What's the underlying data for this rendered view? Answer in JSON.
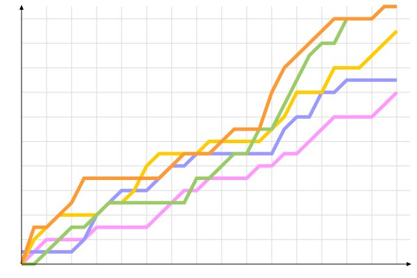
{
  "chart_data": {
    "type": "line",
    "title": "",
    "xlabel": "",
    "ylabel": "",
    "xlim": [
      0,
      30
    ],
    "ylim": [
      0,
      10.5
    ],
    "grid": true,
    "legend": "none",
    "series": [
      {
        "color": "#FF99FF",
        "points": [
          [
            0,
            0
          ],
          [
            2,
            1
          ],
          [
            5,
            1
          ],
          [
            6,
            1.5
          ],
          [
            10,
            1.5
          ],
          [
            11,
            2
          ],
          [
            13,
            3
          ],
          [
            14,
            3
          ],
          [
            15,
            3.5
          ],
          [
            18,
            3.5
          ],
          [
            19,
            4
          ],
          [
            20,
            4
          ],
          [
            21,
            4.5
          ],
          [
            22,
            4.5
          ],
          [
            25,
            6
          ],
          [
            28,
            6
          ],
          [
            30,
            7
          ]
        ]
      },
      {
        "color": "#9999FF",
        "points": [
          [
            0,
            0.5
          ],
          [
            4,
            0.5
          ],
          [
            5,
            1
          ],
          [
            6,
            2
          ],
          [
            8,
            3
          ],
          [
            10,
            3
          ],
          [
            11,
            3.5
          ],
          [
            12,
            4
          ],
          [
            13,
            4
          ],
          [
            14,
            4.5
          ],
          [
            20,
            4.5
          ],
          [
            21,
            5.5
          ],
          [
            22,
            6
          ],
          [
            23,
            6
          ],
          [
            24,
            7
          ],
          [
            25,
            7
          ],
          [
            26,
            7.5
          ],
          [
            30,
            7.5
          ]
        ]
      },
      {
        "color": "#FFCC00",
        "points": [
          [
            0,
            0
          ],
          [
            1,
            1
          ],
          [
            2,
            1.5
          ],
          [
            3,
            2
          ],
          [
            6,
            2
          ],
          [
            7,
            2.5
          ],
          [
            8,
            2.5
          ],
          [
            9,
            3
          ],
          [
            10,
            4
          ],
          [
            11,
            4.5
          ],
          [
            14,
            4.5
          ],
          [
            15,
            5
          ],
          [
            19,
            5
          ],
          [
            20,
            5.5
          ],
          [
            21,
            6
          ],
          [
            22,
            7
          ],
          [
            24,
            7
          ],
          [
            25,
            8
          ],
          [
            27,
            8
          ],
          [
            30,
            9.5
          ]
        ]
      },
      {
        "color": "#99CC66",
        "points": [
          [
            0,
            0
          ],
          [
            1,
            0
          ],
          [
            2,
            0.5
          ],
          [
            4,
            1.5
          ],
          [
            5,
            1.5
          ],
          [
            6,
            2
          ],
          [
            7,
            2.5
          ],
          [
            13,
            2.5
          ],
          [
            14,
            3.5
          ],
          [
            15,
            3.5
          ],
          [
            17,
            4.5
          ],
          [
            18,
            4.5
          ],
          [
            19,
            5.5
          ],
          [
            20,
            5.5
          ],
          [
            23,
            8.5
          ],
          [
            24,
            9
          ],
          [
            25,
            9
          ],
          [
            26,
            10
          ],
          [
            28,
            10
          ],
          [
            29,
            10.5
          ],
          [
            30,
            10.5
          ]
        ]
      },
      {
        "color": "#FF9933",
        "points": [
          [
            0,
            0
          ],
          [
            1,
            1.5
          ],
          [
            2,
            1.5
          ],
          [
            4,
            2.5
          ],
          [
            5,
            3.5
          ],
          [
            11,
            3.5
          ],
          [
            13,
            4.5
          ],
          [
            15,
            4.5
          ],
          [
            17,
            5.5
          ],
          [
            19,
            5.5
          ],
          [
            20,
            7
          ],
          [
            21,
            8
          ],
          [
            22,
            8.5
          ],
          [
            23,
            9
          ],
          [
            25,
            10
          ],
          [
            28,
            10
          ],
          [
            29,
            10.5
          ],
          [
            30,
            10.5
          ]
        ]
      }
    ]
  }
}
